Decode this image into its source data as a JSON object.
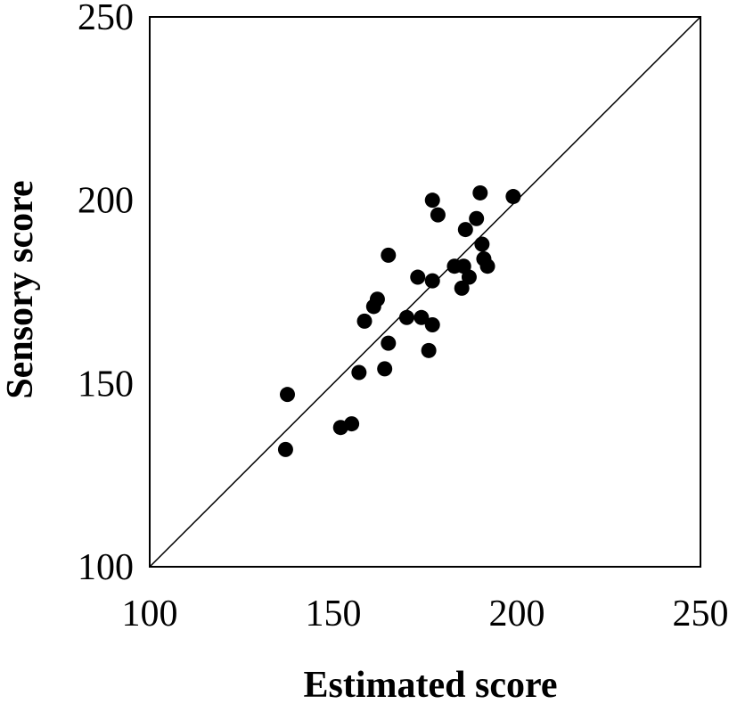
{
  "chart_data": {
    "type": "scatter",
    "title": "",
    "xlabel": "Estimated score",
    "ylabel": "Sensory score",
    "xlim": [
      100,
      250
    ],
    "ylim": [
      100,
      250
    ],
    "xticks": [
      100,
      150,
      200,
      250
    ],
    "yticks": [
      100,
      150,
      200,
      250
    ],
    "grid": false,
    "reference_line": {
      "from": [
        100,
        100
      ],
      "to": [
        250,
        250
      ]
    },
    "marker_color": "#000000",
    "series": [
      {
        "points": [
          [
            137,
            132
          ],
          [
            137.5,
            147
          ],
          [
            152,
            138
          ],
          [
            155,
            139
          ],
          [
            157,
            153
          ],
          [
            158.5,
            167
          ],
          [
            161,
            171
          ],
          [
            162,
            173
          ],
          [
            164,
            154
          ],
          [
            165,
            161
          ],
          [
            165,
            185
          ],
          [
            170,
            168
          ],
          [
            173,
            179
          ],
          [
            174,
            168
          ],
          [
            176,
            159
          ],
          [
            177,
            166
          ],
          [
            177,
            200
          ],
          [
            177,
            178
          ],
          [
            178.5,
            196
          ],
          [
            183,
            182
          ],
          [
            185,
            176
          ],
          [
            185.5,
            182
          ],
          [
            186,
            192
          ],
          [
            187,
            179
          ],
          [
            189,
            195
          ],
          [
            190,
            202
          ],
          [
            190.5,
            188
          ],
          [
            191,
            184
          ],
          [
            192,
            182
          ],
          [
            199,
            201
          ]
        ]
      }
    ]
  }
}
